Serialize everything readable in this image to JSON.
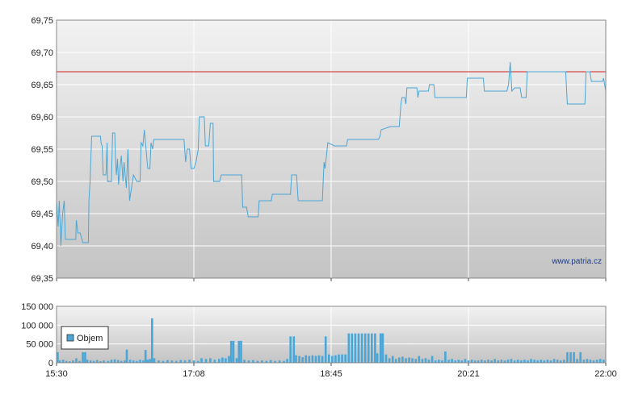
{
  "watermark": "www.patria.cz",
  "chart_data": [
    {
      "type": "line",
      "name": "price",
      "x_labels": [
        "15:30",
        "17:08",
        "18:45",
        "20:21",
        "22:00"
      ],
      "ylim": [
        69.35,
        69.75
      ],
      "y_ticks": [
        "69,35",
        "69,40",
        "69,45",
        "69,50",
        "69,55",
        "69,60",
        "69,65",
        "69,70",
        "69,75"
      ],
      "reference_line": 69.67,
      "grid": true,
      "colors": {
        "line": "#4aa6d6",
        "reference": "#d22020",
        "grid": "#ffffff",
        "bg_top": "#f2f2f2",
        "bg_bottom": "#c6c6c6"
      },
      "points": [
        [
          0.0,
          69.47
        ],
        [
          0.003,
          69.43
        ],
        [
          0.005,
          69.47
        ],
        [
          0.008,
          69.4
        ],
        [
          0.011,
          69.45
        ],
        [
          0.014,
          69.47
        ],
        [
          0.016,
          69.41
        ],
        [
          0.035,
          69.41
        ],
        [
          0.036,
          69.44
        ],
        [
          0.039,
          69.42
        ],
        [
          0.043,
          69.42
        ],
        [
          0.048,
          69.405
        ],
        [
          0.058,
          69.405
        ],
        [
          0.059,
          69.47
        ],
        [
          0.061,
          69.5
        ],
        [
          0.064,
          69.57
        ],
        [
          0.08,
          69.57
        ],
        [
          0.081,
          69.56
        ],
        [
          0.083,
          69.555
        ],
        [
          0.085,
          69.51
        ],
        [
          0.09,
          69.51
        ],
        [
          0.092,
          69.56
        ],
        [
          0.093,
          69.5
        ],
        [
          0.1,
          69.5
        ],
        [
          0.102,
          69.575
        ],
        [
          0.106,
          69.575
        ],
        [
          0.107,
          69.54
        ],
        [
          0.109,
          69.51
        ],
        [
          0.111,
          69.535
        ],
        [
          0.113,
          69.495
        ],
        [
          0.116,
          69.525
        ],
        [
          0.118,
          69.54
        ],
        [
          0.121,
          69.5
        ],
        [
          0.123,
          69.53
        ],
        [
          0.127,
          69.49
        ],
        [
          0.13,
          69.55
        ],
        [
          0.133,
          69.47
        ],
        [
          0.14,
          69.51
        ],
        [
          0.146,
          69.5
        ],
        [
          0.152,
          69.5
        ],
        [
          0.154,
          69.56
        ],
        [
          0.157,
          69.555
        ],
        [
          0.16,
          69.58
        ],
        [
          0.163,
          69.55
        ],
        [
          0.166,
          69.52
        ],
        [
          0.17,
          69.52
        ],
        [
          0.172,
          69.56
        ],
        [
          0.175,
          69.55
        ],
        [
          0.177,
          69.565
        ],
        [
          0.21,
          69.565
        ],
        [
          0.232,
          69.565
        ],
        [
          0.235,
          69.53
        ],
        [
          0.238,
          69.55
        ],
        [
          0.242,
          69.55
        ],
        [
          0.245,
          69.52
        ],
        [
          0.25,
          69.52
        ],
        [
          0.254,
          69.53
        ],
        [
          0.258,
          69.55
        ],
        [
          0.26,
          69.6
        ],
        [
          0.269,
          69.6
        ],
        [
          0.271,
          69.555
        ],
        [
          0.277,
          69.555
        ],
        [
          0.28,
          69.59
        ],
        [
          0.285,
          69.59
        ],
        [
          0.286,
          69.5
        ],
        [
          0.297,
          69.5
        ],
        [
          0.3,
          69.51
        ],
        [
          0.315,
          69.51
        ],
        [
          0.337,
          69.51
        ],
        [
          0.339,
          69.46
        ],
        [
          0.346,
          69.46
        ],
        [
          0.349,
          69.445
        ],
        [
          0.367,
          69.445
        ],
        [
          0.369,
          69.47
        ],
        [
          0.391,
          69.47
        ],
        [
          0.393,
          69.48
        ],
        [
          0.426,
          69.48
        ],
        [
          0.428,
          69.51
        ],
        [
          0.437,
          69.51
        ],
        [
          0.44,
          69.47
        ],
        [
          0.484,
          69.47
        ],
        [
          0.487,
          69.53
        ],
        [
          0.489,
          69.52
        ],
        [
          0.494,
          69.56
        ],
        [
          0.506,
          69.555
        ],
        [
          0.528,
          69.555
        ],
        [
          0.53,
          69.565
        ],
        [
          0.586,
          69.565
        ],
        [
          0.589,
          69.57
        ],
        [
          0.591,
          69.58
        ],
        [
          0.608,
          69.585
        ],
        [
          0.624,
          69.585
        ],
        [
          0.627,
          69.62
        ],
        [
          0.629,
          69.63
        ],
        [
          0.634,
          69.63
        ],
        [
          0.636,
          69.62
        ],
        [
          0.638,
          69.645
        ],
        [
          0.656,
          69.645
        ],
        [
          0.658,
          69.63
        ],
        [
          0.66,
          69.64
        ],
        [
          0.677,
          69.64
        ],
        [
          0.679,
          69.65
        ],
        [
          0.687,
          69.65
        ],
        [
          0.689,
          69.63
        ],
        [
          0.746,
          69.63
        ],
        [
          0.748,
          69.66
        ],
        [
          0.777,
          69.66
        ],
        [
          0.779,
          69.64
        ],
        [
          0.82,
          69.64
        ],
        [
          0.823,
          69.65
        ],
        [
          0.826,
          69.685
        ],
        [
          0.829,
          69.64
        ],
        [
          0.834,
          69.645
        ],
        [
          0.844,
          69.645
        ],
        [
          0.847,
          69.63
        ],
        [
          0.855,
          69.63
        ],
        [
          0.857,
          69.67
        ],
        [
          0.927,
          69.67
        ],
        [
          0.93,
          69.62
        ],
        [
          0.962,
          69.62
        ],
        [
          0.964,
          69.67
        ],
        [
          0.971,
          69.67
        ],
        [
          0.974,
          69.655
        ],
        [
          0.994,
          69.655
        ],
        [
          0.996,
          69.66
        ],
        [
          1.0,
          69.64
        ]
      ]
    },
    {
      "type": "bar",
      "name": "volume",
      "legend": "Objem",
      "x_labels": [
        "15:30",
        "17:08",
        "18:45",
        "20:21",
        "22:00"
      ],
      "ylim": [
        0,
        150000
      ],
      "y_ticks": [
        "0",
        "50 000",
        "100 000",
        "150 000"
      ],
      "grid": true,
      "colors": {
        "bar": "#4aa6d6",
        "bg_top": "#f2f2f2",
        "bg_bottom": "#c6c6c6"
      },
      "bars": [
        [
          0.002,
          28000
        ],
        [
          0.006,
          6000
        ],
        [
          0.012,
          8000
        ],
        [
          0.018,
          5000
        ],
        [
          0.024,
          4000
        ],
        [
          0.03,
          6000
        ],
        [
          0.036,
          12000
        ],
        [
          0.042,
          5000
        ],
        [
          0.048,
          28000
        ],
        [
          0.052,
          28000
        ],
        [
          0.056,
          8000
        ],
        [
          0.062,
          6000
        ],
        [
          0.068,
          5000
        ],
        [
          0.074,
          7000
        ],
        [
          0.08,
          4000
        ],
        [
          0.086,
          6000
        ],
        [
          0.094,
          5000
        ],
        [
          0.1,
          8000
        ],
        [
          0.106,
          9000
        ],
        [
          0.112,
          7000
        ],
        [
          0.118,
          5000
        ],
        [
          0.124,
          6000
        ],
        [
          0.128,
          35000
        ],
        [
          0.134,
          8000
        ],
        [
          0.14,
          6000
        ],
        [
          0.146,
          5000
        ],
        [
          0.152,
          8000
        ],
        [
          0.158,
          6000
        ],
        [
          0.162,
          34000
        ],
        [
          0.166,
          8000
        ],
        [
          0.17,
          10000
        ],
        [
          0.174,
          118000
        ],
        [
          0.178,
          12000
        ],
        [
          0.186,
          6000
        ],
        [
          0.194,
          5000
        ],
        [
          0.202,
          7000
        ],
        [
          0.21,
          6000
        ],
        [
          0.218,
          5000
        ],
        [
          0.226,
          7000
        ],
        [
          0.234,
          6000
        ],
        [
          0.242,
          8000
        ],
        [
          0.25,
          6000
        ],
        [
          0.258,
          5000
        ],
        [
          0.264,
          12000
        ],
        [
          0.272,
          10000
        ],
        [
          0.28,
          12000
        ],
        [
          0.288,
          8000
        ],
        [
          0.296,
          10000
        ],
        [
          0.302,
          14000
        ],
        [
          0.308,
          12000
        ],
        [
          0.314,
          18000
        ],
        [
          0.318,
          58000
        ],
        [
          0.322,
          58000
        ],
        [
          0.328,
          12000
        ],
        [
          0.332,
          58000
        ],
        [
          0.336,
          58000
        ],
        [
          0.342,
          8000
        ],
        [
          0.35,
          6000
        ],
        [
          0.358,
          7000
        ],
        [
          0.366,
          5000
        ],
        [
          0.374,
          6000
        ],
        [
          0.382,
          5000
        ],
        [
          0.39,
          7000
        ],
        [
          0.398,
          5000
        ],
        [
          0.406,
          6000
        ],
        [
          0.414,
          5000
        ],
        [
          0.42,
          10000
        ],
        [
          0.426,
          70000
        ],
        [
          0.432,
          70000
        ],
        [
          0.436,
          20000
        ],
        [
          0.442,
          18000
        ],
        [
          0.448,
          15000
        ],
        [
          0.454,
          20000
        ],
        [
          0.46,
          18000
        ],
        [
          0.466,
          20000
        ],
        [
          0.472,
          18000
        ],
        [
          0.478,
          20000
        ],
        [
          0.484,
          18000
        ],
        [
          0.49,
          70000
        ],
        [
          0.496,
          22000
        ],
        [
          0.502,
          18000
        ],
        [
          0.508,
          20000
        ],
        [
          0.514,
          22000
        ],
        [
          0.52,
          22000
        ],
        [
          0.526,
          22000
        ],
        [
          0.532,
          78000
        ],
        [
          0.538,
          78000
        ],
        [
          0.544,
          78000
        ],
        [
          0.55,
          78000
        ],
        [
          0.556,
          78000
        ],
        [
          0.562,
          78000
        ],
        [
          0.568,
          78000
        ],
        [
          0.574,
          78000
        ],
        [
          0.58,
          78000
        ],
        [
          0.584,
          25000
        ],
        [
          0.59,
          78000
        ],
        [
          0.594,
          78000
        ],
        [
          0.6,
          22000
        ],
        [
          0.606,
          12000
        ],
        [
          0.612,
          18000
        ],
        [
          0.618,
          10000
        ],
        [
          0.624,
          14000
        ],
        [
          0.63,
          16000
        ],
        [
          0.636,
          12000
        ],
        [
          0.642,
          14000
        ],
        [
          0.648,
          12000
        ],
        [
          0.654,
          10000
        ],
        [
          0.66,
          18000
        ],
        [
          0.666,
          10000
        ],
        [
          0.672,
          12000
        ],
        [
          0.678,
          8000
        ],
        [
          0.684,
          18000
        ],
        [
          0.69,
          6000
        ],
        [
          0.696,
          8000
        ],
        [
          0.702,
          6000
        ],
        [
          0.708,
          30000
        ],
        [
          0.714,
          8000
        ],
        [
          0.72,
          10000
        ],
        [
          0.726,
          6000
        ],
        [
          0.732,
          8000
        ],
        [
          0.738,
          6000
        ],
        [
          0.744,
          10000
        ],
        [
          0.75,
          6000
        ],
        [
          0.756,
          8000
        ],
        [
          0.762,
          6000
        ],
        [
          0.768,
          6000
        ],
        [
          0.774,
          8000
        ],
        [
          0.78,
          6000
        ],
        [
          0.786,
          8000
        ],
        [
          0.792,
          6000
        ],
        [
          0.798,
          10000
        ],
        [
          0.804,
          6000
        ],
        [
          0.81,
          8000
        ],
        [
          0.816,
          6000
        ],
        [
          0.822,
          8000
        ],
        [
          0.828,
          10000
        ],
        [
          0.834,
          6000
        ],
        [
          0.84,
          8000
        ],
        [
          0.846,
          6000
        ],
        [
          0.852,
          8000
        ],
        [
          0.858,
          6000
        ],
        [
          0.864,
          10000
        ],
        [
          0.87,
          8000
        ],
        [
          0.876,
          6000
        ],
        [
          0.882,
          8000
        ],
        [
          0.888,
          6000
        ],
        [
          0.894,
          8000
        ],
        [
          0.9,
          6000
        ],
        [
          0.906,
          10000
        ],
        [
          0.912,
          8000
        ],
        [
          0.918,
          6000
        ],
        [
          0.924,
          8000
        ],
        [
          0.93,
          28000
        ],
        [
          0.936,
          28000
        ],
        [
          0.942,
          28000
        ],
        [
          0.948,
          10000
        ],
        [
          0.954,
          28000
        ],
        [
          0.96,
          8000
        ],
        [
          0.966,
          10000
        ],
        [
          0.972,
          8000
        ],
        [
          0.978,
          6000
        ],
        [
          0.984,
          8000
        ],
        [
          0.99,
          10000
        ],
        [
          0.996,
          8000
        ]
      ]
    }
  ]
}
